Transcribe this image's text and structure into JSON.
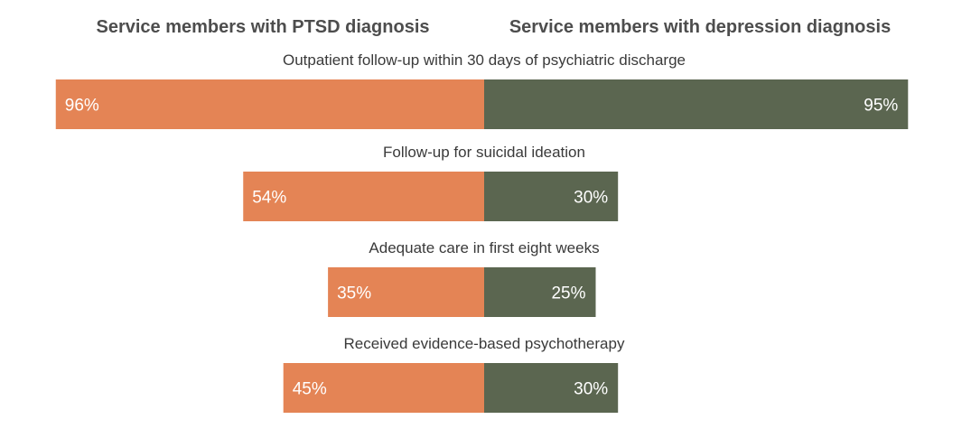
{
  "chart_data": {
    "type": "bar",
    "orientation": "diverging-horizontal",
    "series": [
      {
        "name": "Service members with PTSD diagnosis",
        "color": "#e48455",
        "values": [
          96,
          54,
          35,
          45
        ]
      },
      {
        "name": "Service members with depression diagnosis",
        "color": "#5b6650",
        "values": [
          95,
          30,
          25,
          30
        ]
      }
    ],
    "categories": [
      "Outpatient follow-up within 30 days of psychiatric discharge",
      "Follow-up for suicidal ideation",
      "Adequate care in first eight weeks",
      "Received evidence-based psychotherapy"
    ],
    "value_labels": [
      [
        "96%",
        "54%",
        "35%",
        "45%"
      ],
      [
        "95%",
        "30%",
        "25%",
        "30%"
      ]
    ],
    "value_unit": "%",
    "xlim": [
      0,
      100
    ],
    "legend": "top",
    "grid": false
  }
}
